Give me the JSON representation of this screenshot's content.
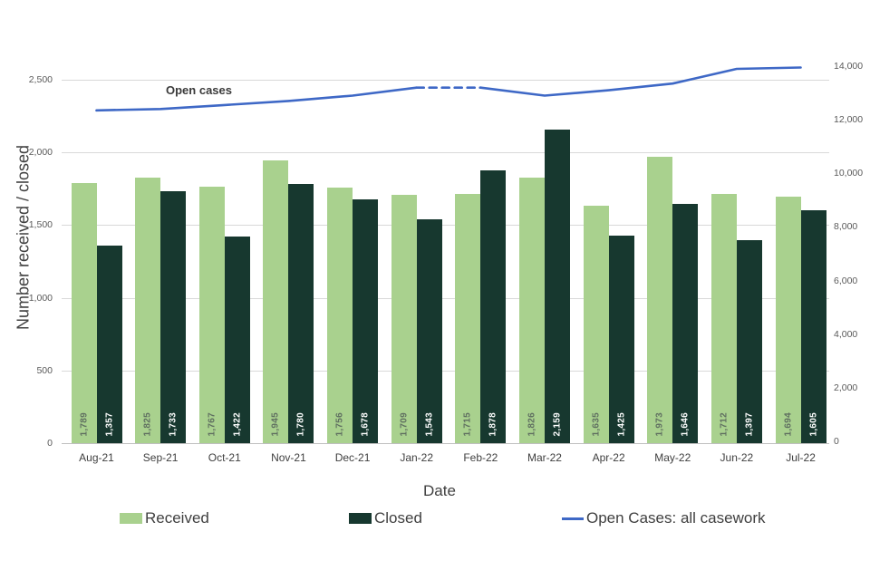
{
  "chart_data": {
    "type": "combo",
    "categories": [
      "Aug-21",
      "Sep-21",
      "Oct-21",
      "Nov-21",
      "Dec-21",
      "Jan-22",
      "Feb-22",
      "Mar-22",
      "Apr-22",
      "May-22",
      "Jun-22",
      "Jul-22"
    ],
    "series": [
      {
        "name": "Received",
        "type": "bar",
        "axis": "left",
        "color": "#a9d18e",
        "value_label_color": "#5f6f60",
        "values": [
          1789,
          1825,
          1767,
          1945,
          1756,
          1709,
          1715,
          1826,
          1635,
          1973,
          1712,
          1694
        ]
      },
      {
        "name": "Closed",
        "type": "bar",
        "axis": "left",
        "color": "#17382f",
        "value_label_color": "#ffffff",
        "values": [
          1357,
          1733,
          1422,
          1780,
          1678,
          1543,
          1878,
          2159,
          1425,
          1646,
          1397,
          1605
        ]
      },
      {
        "name": "Open Cases: all casework",
        "type": "line",
        "axis": "right",
        "color": "#3e68c6",
        "annotation": "Open cases",
        "values": [
          12350,
          12400,
          12550,
          12700,
          12900,
          13200,
          13200,
          12900,
          13100,
          13350,
          13900,
          13950
        ],
        "dashed_segment_categories": [
          "Jan-22",
          "Feb-22"
        ]
      }
    ],
    "left_axis": {
      "label": "Number received / closed",
      "min": 0,
      "max": 2500,
      "step": 500
    },
    "right_axis": {
      "min": 0,
      "max": 14000,
      "step": 2000
    },
    "xlabel": "Date",
    "grid": true,
    "legend_position": "bottom"
  },
  "legend": {
    "received_label": "Received",
    "closed_label": "Closed",
    "open_cases_label": "Open Cases: all casework"
  },
  "colors": {
    "grid": "#d9d9d9",
    "axis_line": "#bfbfbf",
    "tick_text": "#595959",
    "title_text": "#404040",
    "background": "#ffffff"
  }
}
